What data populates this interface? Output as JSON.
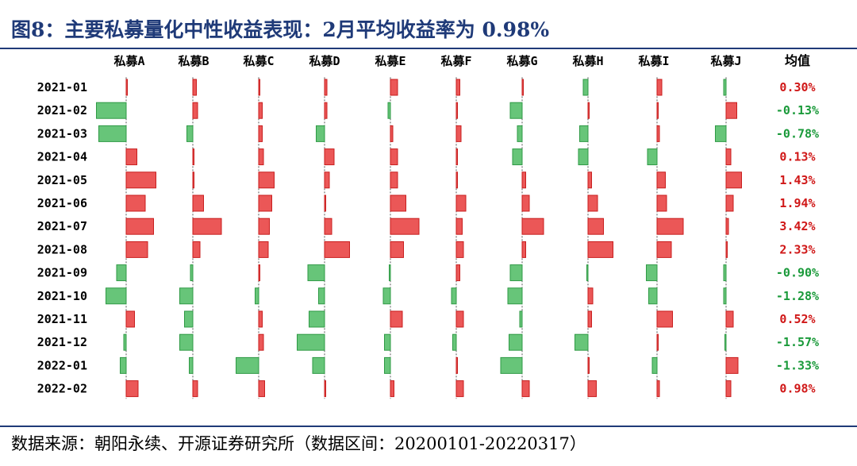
{
  "title": "图8：主要私募量化中性收益表现：2月平均收益率为 0.98%",
  "source": "数据来源：朝阳永续、开源证券研究所（数据区间：20200101-20220317）",
  "colors": {
    "positive": "#e83a3a",
    "negative": "#4cbb62",
    "title": "#1f3a78"
  },
  "chart_data": {
    "type": "bar",
    "orientation": "horizontal",
    "categories": [
      "2021-01",
      "2021-02",
      "2021-03",
      "2021-04",
      "2021-05",
      "2021-06",
      "2021-07",
      "2021-08",
      "2021-09",
      "2021-10",
      "2021-11",
      "2021-12",
      "2022-01",
      "2022-02"
    ],
    "series": [
      {
        "name": "私募A",
        "values": [
          0.05,
          -2.5,
          -2.3,
          0.9,
          2.5,
          1.6,
          2.3,
          1.8,
          -0.8,
          -1.7,
          0.7,
          -0.2,
          -0.5,
          1.0
        ]
      },
      {
        "name": "私募B",
        "values": [
          0.3,
          0.4,
          -0.5,
          0.05,
          0.05,
          0.9,
          2.4,
          0.6,
          -0.2,
          -1.1,
          -0.7,
          -1.1,
          -0.3,
          0.4
        ]
      },
      {
        "name": "私募C",
        "values": [
          0.05,
          0.3,
          0.3,
          0.4,
          1.3,
          1.1,
          0.9,
          0.8,
          0.05,
          -0.3,
          0.3,
          0.4,
          -1.9,
          0.5
        ]
      },
      {
        "name": "私募D",
        "values": [
          0.2,
          0.2,
          -0.7,
          0.8,
          0.4,
          0.05,
          0.6,
          2.1,
          -1.4,
          -0.5,
          -1.3,
          -2.3,
          -1.0,
          0.05
        ]
      },
      {
        "name": "私募E",
        "values": [
          0.6,
          -0.2,
          0.2,
          0.6,
          0.6,
          1.3,
          2.4,
          1.1,
          -0.1,
          -0.6,
          1.0,
          -0.5,
          -0.5,
          0.3
        ]
      },
      {
        "name": "私募F",
        "values": [
          0.3,
          0.05,
          0.4,
          0.05,
          0.05,
          0.8,
          0.5,
          0.6,
          0.3,
          -0.4,
          0.6,
          -0.3,
          0.05,
          0.6
        ]
      },
      {
        "name": "私募G",
        "values": [
          0.05,
          -1.0,
          -0.4,
          -0.8,
          0.3,
          0.6,
          1.8,
          0.3,
          -1.0,
          -1.2,
          -0.2,
          -1.1,
          -1.8,
          0.6
        ]
      },
      {
        "name": "私募H",
        "values": [
          -0.4,
          0.1,
          -0.7,
          -0.8,
          0.3,
          0.8,
          1.3,
          2.1,
          -0.05,
          0.4,
          0.3,
          -1.1,
          0.05,
          0.7
        ]
      },
      {
        "name": "私募I",
        "values": [
          0.4,
          0.05,
          0.2,
          -0.8,
          0.7,
          0.8,
          2.2,
          1.2,
          -0.9,
          -0.7,
          1.3,
          0.05,
          -0.4,
          0.2
        ]
      },
      {
        "name": "私募J",
        "values": [
          -0.2,
          0.9,
          -0.9,
          0.4,
          1.3,
          0.6,
          0.2,
          0.05,
          -0.2,
          -0.2,
          0.6,
          -0.1,
          1.0,
          0.4
        ]
      }
    ],
    "mean": {
      "name": "均值",
      "labels": [
        "0.30%",
        "-0.13%",
        "-0.78%",
        "0.13%",
        "1.43%",
        "1.94%",
        "3.42%",
        "2.33%",
        "-0.90%",
        "-1.28%",
        "0.52%",
        "-1.57%",
        "-1.33%",
        "0.98%"
      ]
    },
    "grid": false,
    "legend": "none"
  }
}
